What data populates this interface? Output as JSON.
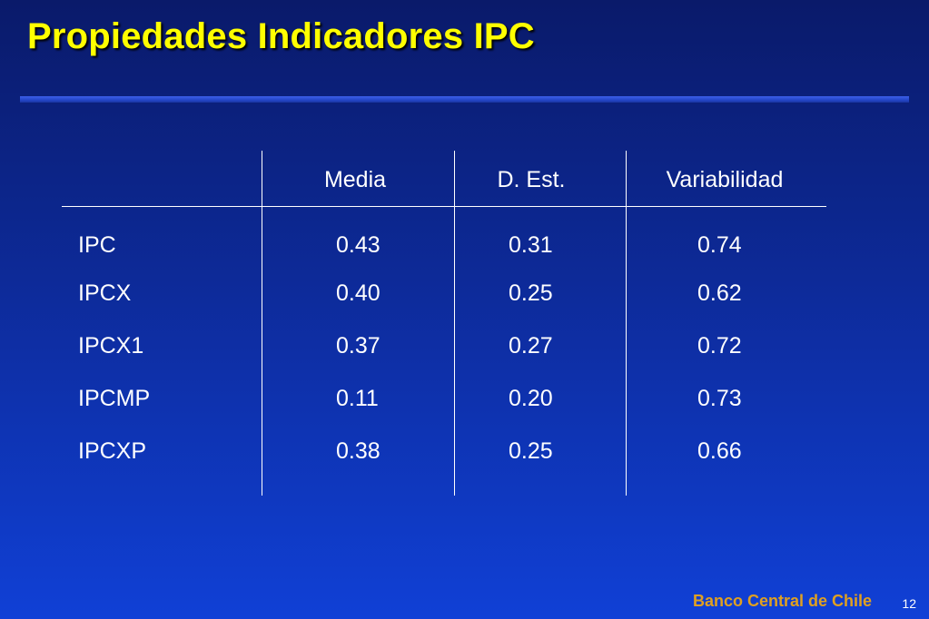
{
  "title": "Propiedades Indicadores IPC",
  "colors": {
    "title": "#ffff00",
    "text": "#ffffff",
    "footer_brand": "#e0a020",
    "background_top": "#0a1a6a",
    "background_bottom": "#1040d6"
  },
  "table": {
    "headers": [
      "",
      "Media",
      "D. Est.",
      "Variabilidad"
    ],
    "rows": [
      {
        "label": "IPC",
        "media": "0.43",
        "dest": "0.31",
        "var": "0.74"
      },
      {
        "label": "IPCX",
        "media": "0.40",
        "dest": "0.25",
        "var": "0.62"
      },
      {
        "label": "IPCX1",
        "media": "0.37",
        "dest": "0.27",
        "var": "0.72"
      },
      {
        "label": "IPCMP",
        "media": "0.11",
        "dest": "0.20",
        "var": "0.73"
      },
      {
        "label": "IPCXP",
        "media": "0.38",
        "dest": "0.25",
        "var": "0.66"
      }
    ]
  },
  "footer": {
    "brand": "Banco Central de Chile",
    "page": "12"
  }
}
